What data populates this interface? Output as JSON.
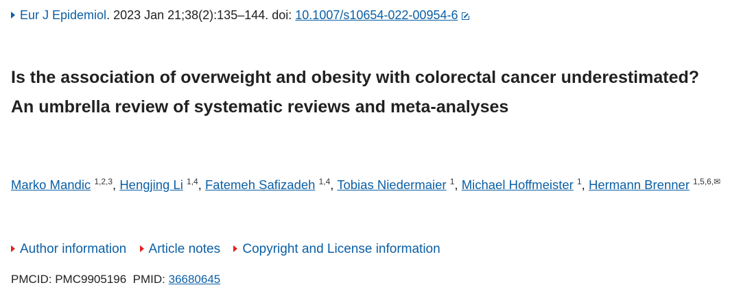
{
  "citation": {
    "journal": "Eur J Epidemiol",
    "rest": ". 2023 Jan 21;38(2):135–144. doi: ",
    "doi": "10.1007/s10654-022-00954-6",
    "doi_icon": "external-link-icon"
  },
  "title": "Is the association of overweight and obesity with colorectal cancer underestimated? An umbrella review of systematic reviews and meta-analyses",
  "authors": [
    {
      "name": "Marko Mandic",
      "aff": "1,2,3"
    },
    {
      "name": "Hengjing Li",
      "aff": "1,4"
    },
    {
      "name": "Fatemeh Safizadeh",
      "aff": "1,4"
    },
    {
      "name": "Tobias Niedermaier",
      "aff": "1"
    },
    {
      "name": "Michael Hoffmeister",
      "aff": "1"
    },
    {
      "name": "Hermann Brenner",
      "aff": "1,5,6,✉"
    }
  ],
  "notes": [
    "Author information",
    "Article notes",
    "Copyright and License information"
  ],
  "ids": {
    "pmcid_label": "PMCID: PMC9905196",
    "pmid_label": "PMID:",
    "pmid": "36680645"
  },
  "colors": {
    "link": "#0b5fa5",
    "toggle_marker": "#e0241c"
  }
}
